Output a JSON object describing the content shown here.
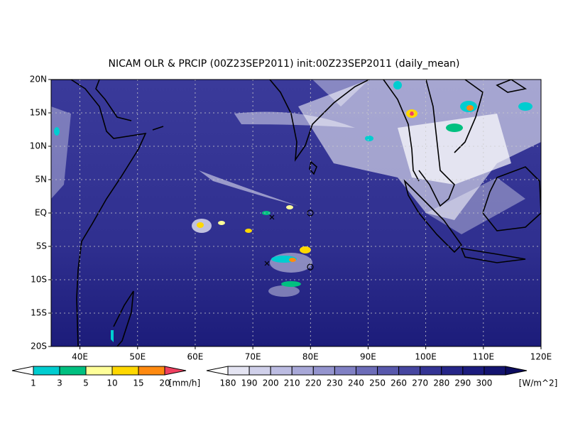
{
  "title": "NICAM OLR & PRCIP (00Z23SEP2011) init:00Z23SEP2011 (daily_mean)",
  "map": {
    "lon_range": [
      35,
      120
    ],
    "lat_range": [
      -20,
      20
    ],
    "lat_ticks": [
      {
        "value": 20,
        "label": "20N"
      },
      {
        "value": 15,
        "label": "15N"
      },
      {
        "value": 10,
        "label": "10N"
      },
      {
        "value": 5,
        "label": "5N"
      },
      {
        "value": 0,
        "label": "EQ"
      },
      {
        "value": -5,
        "label": "5S"
      },
      {
        "value": -10,
        "label": "10S"
      },
      {
        "value": -15,
        "label": "15S"
      },
      {
        "value": -20,
        "label": "20S"
      }
    ],
    "lon_ticks": [
      {
        "value": 40,
        "label": "40E"
      },
      {
        "value": 50,
        "label": "50E"
      },
      {
        "value": 60,
        "label": "60E"
      },
      {
        "value": 70,
        "label": "70E"
      },
      {
        "value": 80,
        "label": "80E"
      },
      {
        "value": 90,
        "label": "90E"
      },
      {
        "value": 100,
        "label": "100E"
      },
      {
        "value": 110,
        "label": "110E"
      },
      {
        "value": 120,
        "label": "120E"
      }
    ]
  },
  "precip_colorbar": {
    "labels": [
      1,
      3,
      5,
      10,
      15,
      20
    ],
    "unit": "[mm/h]",
    "colors": [
      "#ffffff",
      "#00cdd0",
      "#00c080",
      "#ffff99",
      "#ffd800",
      "#ff8a10",
      "#f04060"
    ]
  },
  "olr_colorbar": {
    "labels": [
      180,
      190,
      200,
      210,
      220,
      230,
      240,
      250,
      260,
      270,
      280,
      290,
      300
    ],
    "unit": "[W/m^2]",
    "colors": [
      "#ffffff",
      "#e4e4f2",
      "#d0d0ea",
      "#bcbce2",
      "#a8a8d8",
      "#9494ce",
      "#8080c4",
      "#6c6cb8",
      "#5858ac",
      "#4646a0",
      "#343494",
      "#262688",
      "#1c1c7e",
      "#141470",
      "#0c0c60"
    ]
  }
}
